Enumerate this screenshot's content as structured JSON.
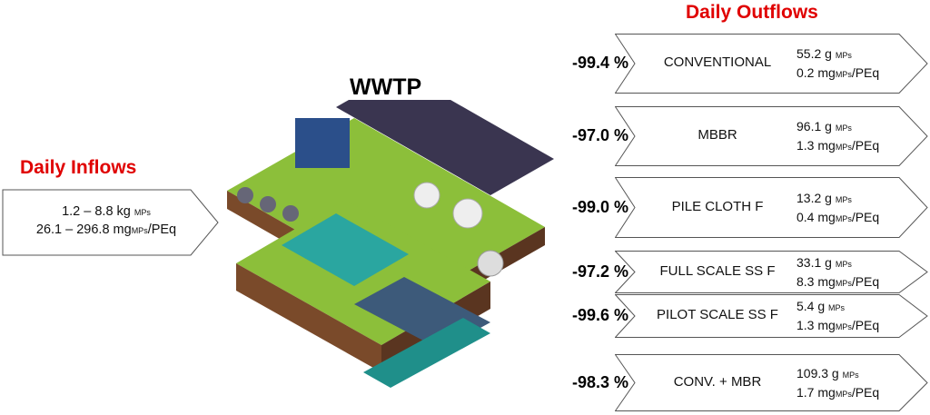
{
  "inflows": {
    "title": "Daily Inflows",
    "line1_value": "1.2 – 8.8 kg",
    "line1_unit": "MPs",
    "line2_value": "26.1 – 296.8 mg",
    "line2_unit": "MPs",
    "line2_suffix": "/PEq"
  },
  "plant": {
    "title": "WWTP"
  },
  "outflows": {
    "title": "Daily Outflows",
    "items": [
      {
        "reduction": "-99.4 %",
        "label": "CONVENTIONAL",
        "mass": "55.2 g",
        "mass_unit": "MPs",
        "per": "0.2 mg",
        "per_unit": "MPs",
        "per_suffix": "/PEq"
      },
      {
        "reduction": "-97.0 %",
        "label": "MBBR",
        "mass": "96.1 g",
        "mass_unit": "MPs",
        "per": "1.3 mg",
        "per_unit": "MPs",
        "per_suffix": "/PEq"
      },
      {
        "reduction": "-99.0 %",
        "label": "PILE CLOTH F",
        "mass": "13.2 g",
        "mass_unit": "MPs",
        "per": "0.4 mg",
        "per_unit": "MPs",
        "per_suffix": "/PEq"
      },
      {
        "reduction": "-97.2 %",
        "label": "FULL SCALE SS F",
        "mass": "33.1 g",
        "mass_unit": "MPs",
        "per": "8.3 mg",
        "per_unit": "MPs",
        "per_suffix": "/PEq"
      },
      {
        "reduction": "-99.6 %",
        "label": "PILOT SCALE SS F",
        "mass": "5.4 g",
        "mass_unit": "MPs",
        "per": "1.3 mg",
        "per_unit": "MPs",
        "per_suffix": "/PEq"
      },
      {
        "reduction": "-98.3 %",
        "label": "CONV. + MBR",
        "mass": "109.3 g",
        "mass_unit": "MPs",
        "per": "1.7 mg",
        "per_unit": "MPs",
        "per_suffix": "/PEq"
      }
    ]
  },
  "colors": {
    "title": "#e00000",
    "grass": "#8cbf3a",
    "water": "#2aa6a0",
    "road": "#3a3550"
  }
}
